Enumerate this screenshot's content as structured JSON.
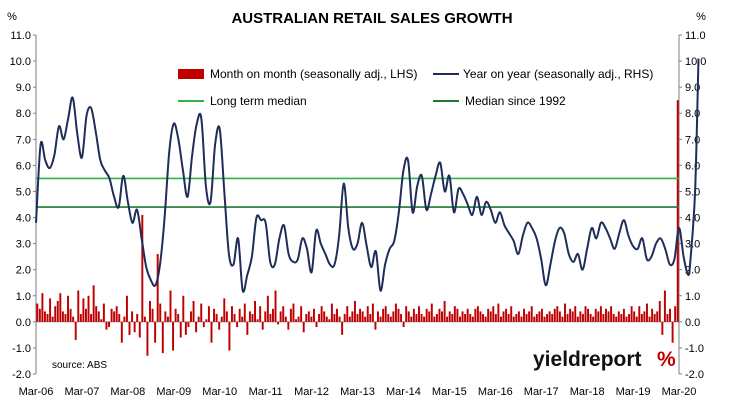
{
  "chart_data": {
    "type": "bar+line",
    "title": "AUSTRALIAN RETAIL SALES GROWTH",
    "left_unit": "%",
    "right_unit": "%",
    "source": "source: ABS",
    "brand": {
      "text": "yieldreport",
      "symbol": "%"
    },
    "ylim_left": [
      -2.0,
      11.0
    ],
    "ylim_right": [
      -2.0,
      11.0
    ],
    "y_ticks_left": [
      "11.0",
      "10.0",
      "9.0",
      "8.0",
      "7.0",
      "6.0",
      "5.0",
      "4.0",
      "3.0",
      "2.0",
      "1.0",
      "0.0",
      "-1.0",
      "-2.0"
    ],
    "y_ticks_right": [
      "11.0",
      "10.0",
      "9.0",
      "8.0",
      "7.0",
      "6.0",
      "5.0",
      "4.0",
      "3.0",
      "2.0",
      "1.0",
      "0.0",
      "-1.0",
      "-2.0"
    ],
    "x_tick_labels": [
      "Mar-06",
      "Mar-07",
      "Mar-08",
      "Mar-09",
      "Mar-10",
      "Mar-11",
      "Mar-12",
      "Mar-13",
      "Mar-14",
      "Mar-15",
      "Mar-16",
      "Mar-17",
      "Mar-18",
      "Mar-19",
      "Mar-20"
    ],
    "x_start": "Mar-06",
    "x_end": "Mar-20",
    "legend": {
      "mom": "Month on month (seasonally adj., LHS)",
      "yoy": "Year on year (seasonally adj., RHS)",
      "long_term_median": "Long term median",
      "median_since_1992": "Median since 1992"
    },
    "colors": {
      "mom": "#c00000",
      "yoy": "#1f2d5a",
      "long_term_median": "#2db34a",
      "median_since_1992": "#1e7a30"
    },
    "long_term_median": 5.5,
    "median_since_1992": 4.4,
    "mom_values": [
      0.7,
      0.5,
      1.1,
      0.4,
      0.3,
      0.9,
      0.2,
      0.6,
      0.8,
      1.1,
      0.4,
      0.3,
      1.0,
      0.5,
      0.2,
      -0.7,
      1.2,
      0.3,
      0.9,
      0.5,
      1.0,
      0.3,
      1.4,
      0.6,
      0.4,
      0.1,
      0.7,
      -0.3,
      -0.2,
      0.5,
      0.4,
      0.6,
      0.3,
      -0.8,
      0.2,
      1.0,
      -0.5,
      0.4,
      -0.4,
      0.3,
      -0.6,
      4.1,
      0.2,
      -1.3,
      0.8,
      0.5,
      -0.8,
      2.6,
      0.7,
      -1.2,
      0.4,
      0.2,
      1.2,
      -1.1,
      0.5,
      0.3,
      -0.6,
      1.0,
      -0.5,
      -0.2,
      0.4,
      0.8,
      -0.4,
      0.2,
      0.7,
      -0.2,
      0.1,
      0.6,
      -0.8,
      0.5,
      0.3,
      -0.3,
      0.2,
      0.9,
      0.4,
      -1.1,
      0.6,
      0.3,
      -0.2,
      0.5,
      0.2,
      0.7,
      -0.5,
      0.4,
      0.3,
      0.8,
      0.1,
      0.6,
      -0.3,
      0.4,
      1.0,
      0.3,
      0.5,
      1.2,
      -0.1,
      0.4,
      0.6,
      0.2,
      -0.3,
      0.5,
      0.7,
      0.1,
      0.2,
      0.6,
      -0.4,
      0.3,
      0.4,
      0.2,
      0.5,
      -0.2,
      0.3,
      0.6,
      0.4,
      0.2,
      0.1,
      0.7,
      0.3,
      0.5,
      0.2,
      -0.5,
      0.3,
      0.6,
      0.2,
      0.4,
      0.8,
      0.3,
      0.5,
      0.4,
      0.2,
      0.6,
      0.3,
      0.7,
      -0.3,
      0.4,
      0.2,
      0.5,
      0.6,
      0.3,
      0.2,
      0.4,
      0.7,
      0.5,
      0.3,
      -0.2,
      0.6,
      0.4,
      0.2,
      0.5,
      0.3,
      0.6,
      0.3,
      0.2,
      0.5,
      0.4,
      0.7,
      0.2,
      0.3,
      0.5,
      0.4,
      0.8,
      0.2,
      0.4,
      0.3,
      0.6,
      0.5,
      0.2,
      0.4,
      0.3,
      0.5,
      0.3,
      0.2,
      0.5,
      0.6,
      0.4,
      0.3,
      0.2,
      0.5,
      0.4,
      0.6,
      0.3,
      0.7,
      0.2,
      0.4,
      0.5,
      0.3,
      0.6,
      0.2,
      0.3,
      0.4,
      0.2,
      0.5,
      0.3,
      0.4,
      0.6,
      0.2,
      0.3,
      0.4,
      0.5,
      0.2,
      0.3,
      0.4,
      0.3,
      0.5,
      0.6,
      0.4,
      0.2,
      0.7,
      0.3,
      0.5,
      0.4,
      0.6,
      0.2,
      0.4,
      0.3,
      0.6,
      0.5,
      0.3,
      0.2,
      0.5,
      0.4,
      0.6,
      0.3,
      0.5,
      0.4,
      0.6,
      0.3,
      0.2,
      0.4,
      0.3,
      0.5,
      0.2,
      0.3,
      0.6,
      0.4,
      0.2,
      0.6,
      0.3,
      0.4,
      0.7,
      0.2,
      0.5,
      0.3,
      0.4,
      0.8,
      -0.5,
      1.2,
      0.3,
      0.5,
      -0.8,
      0.6,
      8.5
    ],
    "yoy_points": [
      [
        0.0,
        3.8
      ],
      [
        0.4,
        6.8
      ],
      [
        0.8,
        6.2
      ],
      [
        1.2,
        5.9
      ],
      [
        1.6,
        6.4
      ],
      [
        2.0,
        7.5
      ],
      [
        2.4,
        7.0
      ],
      [
        2.8,
        7.8
      ],
      [
        3.2,
        8.6
      ],
      [
        3.6,
        7.2
      ],
      [
        4.0,
        6.3
      ],
      [
        4.4,
        7.9
      ],
      [
        4.8,
        8.2
      ],
      [
        5.2,
        7.3
      ],
      [
        5.6,
        6.2
      ],
      [
        6.0,
        5.8
      ],
      [
        6.4,
        5.5
      ],
      [
        6.8,
        4.8
      ],
      [
        7.2,
        4.4
      ],
      [
        7.6,
        5.6
      ],
      [
        8.0,
        4.6
      ],
      [
        8.4,
        3.8
      ],
      [
        8.8,
        4.3
      ],
      [
        9.2,
        3.2
      ],
      [
        9.6,
        2.1
      ],
      [
        10.0,
        1.6
      ],
      [
        10.4,
        1.4
      ],
      [
        10.8,
        2.2
      ],
      [
        11.2,
        4.0
      ],
      [
        11.6,
        6.5
      ],
      [
        12.0,
        7.6
      ],
      [
        12.4,
        7.0
      ],
      [
        12.8,
        5.8
      ],
      [
        13.2,
        4.8
      ],
      [
        13.6,
        6.4
      ],
      [
        14.0,
        7.6
      ],
      [
        14.4,
        7.8
      ],
      [
        14.8,
        5.2
      ],
      [
        15.2,
        4.6
      ],
      [
        15.6,
        6.8
      ],
      [
        16.0,
        7.4
      ],
      [
        16.4,
        5.0
      ],
      [
        16.8,
        2.6
      ],
      [
        17.2,
        2.2
      ],
      [
        17.6,
        3.2
      ],
      [
        18.0,
        1.2
      ],
      [
        18.4,
        1.8
      ],
      [
        18.8,
        2.5
      ],
      [
        19.2,
        4.0
      ],
      [
        19.6,
        3.9
      ],
      [
        20.0,
        3.8
      ],
      [
        20.4,
        2.3
      ],
      [
        20.8,
        2.2
      ],
      [
        21.2,
        3.2
      ],
      [
        21.6,
        3.7
      ],
      [
        22.0,
        2.6
      ],
      [
        22.4,
        2.3
      ],
      [
        22.8,
        2.4
      ],
      [
        23.2,
        3.2
      ],
      [
        23.6,
        2.8
      ],
      [
        24.0,
        1.9
      ],
      [
        24.4,
        3.5
      ],
      [
        24.8,
        3.0
      ],
      [
        25.2,
        2.6
      ],
      [
        25.6,
        2.2
      ],
      [
        26.0,
        2.2
      ],
      [
        26.4,
        3.3
      ],
      [
        26.8,
        5.3
      ],
      [
        27.2,
        3.6
      ],
      [
        27.6,
        2.8
      ],
      [
        28.0,
        3.0
      ],
      [
        28.4,
        3.8
      ],
      [
        28.8,
        2.9
      ],
      [
        29.2,
        2.1
      ],
      [
        29.6,
        2.7
      ],
      [
        30.0,
        1.2
      ],
      [
        30.4,
        2.2
      ],
      [
        30.8,
        2.8
      ],
      [
        31.2,
        3.1
      ],
      [
        31.6,
        4.2
      ],
      [
        32.0,
        5.8
      ],
      [
        32.4,
        6.2
      ],
      [
        32.8,
        4.2
      ],
      [
        33.2,
        5.2
      ],
      [
        33.6,
        5.6
      ],
      [
        34.0,
        4.3
      ],
      [
        34.4,
        4.9
      ],
      [
        34.8,
        5.6
      ],
      [
        35.2,
        6.1
      ],
      [
        35.6,
        5.0
      ],
      [
        36.0,
        5.6
      ],
      [
        36.4,
        4.2
      ],
      [
        36.8,
        5.1
      ],
      [
        37.2,
        4.9
      ],
      [
        37.6,
        4.5
      ],
      [
        38.0,
        4.1
      ],
      [
        38.4,
        4.8
      ],
      [
        38.8,
        4.1
      ],
      [
        39.2,
        4.6
      ],
      [
        39.6,
        4.3
      ],
      [
        40.0,
        3.8
      ],
      [
        40.4,
        4.2
      ],
      [
        40.8,
        3.7
      ],
      [
        41.2,
        3.4
      ],
      [
        41.6,
        3.1
      ],
      [
        42.0,
        2.6
      ],
      [
        42.4,
        3.3
      ],
      [
        42.8,
        3.8
      ],
      [
        43.2,
        3.6
      ],
      [
        43.6,
        3.2
      ],
      [
        44.0,
        2.4
      ],
      [
        44.4,
        1.4
      ],
      [
        44.8,
        2.2
      ],
      [
        45.2,
        3.1
      ],
      [
        45.6,
        3.6
      ],
      [
        46.0,
        3.4
      ],
      [
        46.4,
        2.6
      ],
      [
        46.8,
        2.3
      ],
      [
        47.2,
        2.6
      ],
      [
        47.6,
        2.0
      ],
      [
        48.0,
        2.8
      ],
      [
        48.4,
        3.6
      ],
      [
        48.8,
        3.2
      ],
      [
        49.2,
        3.8
      ],
      [
        49.6,
        3.6
      ],
      [
        50.0,
        3.2
      ],
      [
        50.4,
        2.8
      ],
      [
        50.8,
        3.4
      ],
      [
        51.2,
        3.9
      ],
      [
        51.6,
        3.3
      ],
      [
        52.0,
        2.9
      ],
      [
        52.4,
        2.8
      ],
      [
        52.8,
        3.2
      ],
      [
        53.2,
        2.4
      ],
      [
        53.6,
        2.5
      ],
      [
        54.0,
        3.0
      ],
      [
        54.4,
        3.2
      ],
      [
        54.8,
        2.8
      ],
      [
        55.2,
        2.2
      ],
      [
        55.6,
        2.4
      ],
      [
        56.0,
        3.6
      ],
      [
        56.4,
        2.5
      ],
      [
        56.8,
        1.8
      ],
      [
        57.0,
        2.4
      ],
      [
        57.4,
        5.0
      ],
      [
        57.7,
        10.1
      ]
    ]
  }
}
